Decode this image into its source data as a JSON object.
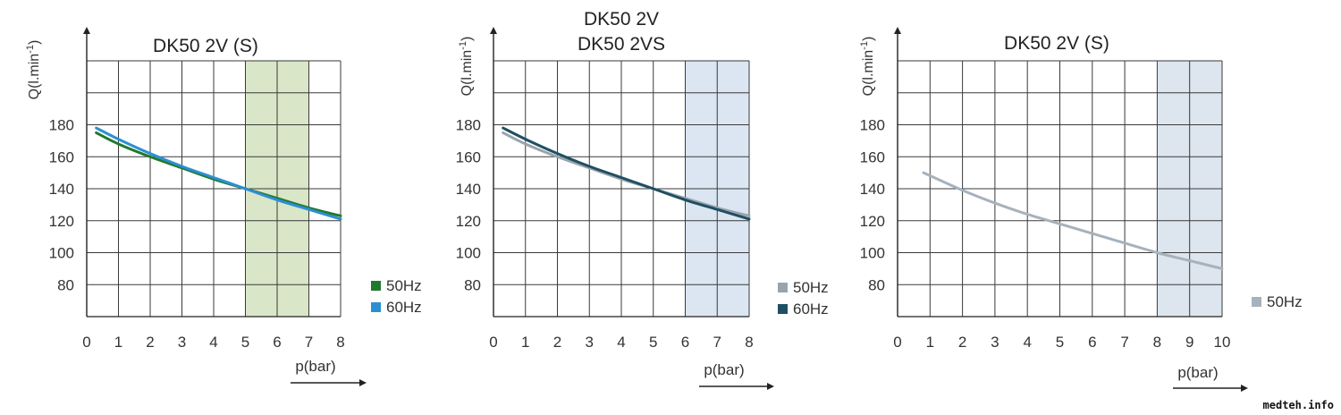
{
  "watermark": "medteh.info",
  "chart_data": [
    {
      "type": "line",
      "title": "DK50 2V (S)",
      "xlabel": "p(bar)",
      "ylabel": "Q(l.min-1)",
      "x_ticks": [
        0,
        1,
        2,
        3,
        4,
        5,
        6,
        7,
        8
      ],
      "y_ticks": [
        80,
        100,
        120,
        140,
        160,
        180
      ],
      "xlim": [
        0,
        8
      ],
      "ylim": [
        60,
        220
      ],
      "grid": true,
      "highlight_band": {
        "x": [
          5,
          7
        ],
        "color": "#d9e6c8"
      },
      "legend_position": "bottom-right",
      "series": [
        {
          "name": "50Hz",
          "color": "#1f7a2e",
          "x": [
            0.3,
            1,
            2,
            3,
            4,
            5,
            6,
            7,
            8
          ],
          "y": [
            175,
            168,
            160,
            153,
            146,
            140,
            134,
            128,
            123
          ]
        },
        {
          "name": "60Hz",
          "color": "#2c8fd3",
          "x": [
            0.3,
            1,
            2,
            3,
            4,
            5,
            6,
            7,
            8
          ],
          "y": [
            178,
            171,
            162,
            154,
            147,
            140,
            133,
            127,
            121
          ]
        }
      ]
    },
    {
      "type": "line",
      "title": [
        "DK50 2V",
        "DK50 2VS"
      ],
      "xlabel": "p(bar)",
      "ylabel": "Q(l.min-1)",
      "x_ticks": [
        0,
        1,
        2,
        3,
        4,
        5,
        6,
        7,
        8
      ],
      "y_ticks": [
        80,
        100,
        120,
        140,
        160,
        180
      ],
      "xlim": [
        0,
        8
      ],
      "ylim": [
        60,
        220
      ],
      "grid": true,
      "highlight_band": {
        "x": [
          6,
          8
        ],
        "color": "#dbe6f2"
      },
      "legend_position": "bottom-right",
      "series": [
        {
          "name": "50Hz",
          "color": "#98a4ad",
          "x": [
            0.3,
            1,
            2,
            3,
            4,
            5,
            6,
            7,
            8
          ],
          "y": [
            175,
            168,
            160,
            153,
            146,
            140,
            134,
            128,
            123
          ]
        },
        {
          "name": "60Hz",
          "color": "#1f4f62",
          "x": [
            0.3,
            1,
            2,
            3,
            4,
            5,
            6,
            7,
            8
          ],
          "y": [
            178,
            171,
            162,
            154,
            147,
            140,
            133,
            127,
            121
          ]
        }
      ]
    },
    {
      "type": "line",
      "title": "DK50 2V (S)",
      "xlabel": "p(bar)",
      "ylabel": "Q(l.min-1)",
      "x_ticks": [
        0,
        1,
        2,
        3,
        4,
        5,
        6,
        7,
        8,
        9,
        10
      ],
      "y_ticks": [
        80,
        100,
        120,
        140,
        160,
        180
      ],
      "xlim": [
        0,
        10
      ],
      "ylim": [
        60,
        220
      ],
      "grid": true,
      "highlight_band": {
        "x": [
          8,
          10
        ],
        "color": "#dde5ef"
      },
      "legend_position": "bottom-right",
      "series": [
        {
          "name": "50Hz",
          "color": "#a6b2bc",
          "x": [
            0.8,
            2,
            3,
            4,
            5,
            6,
            7,
            8,
            9,
            10
          ],
          "y": [
            150,
            139,
            131,
            124,
            118,
            112,
            106,
            100,
            95,
            90
          ]
        }
      ]
    }
  ]
}
